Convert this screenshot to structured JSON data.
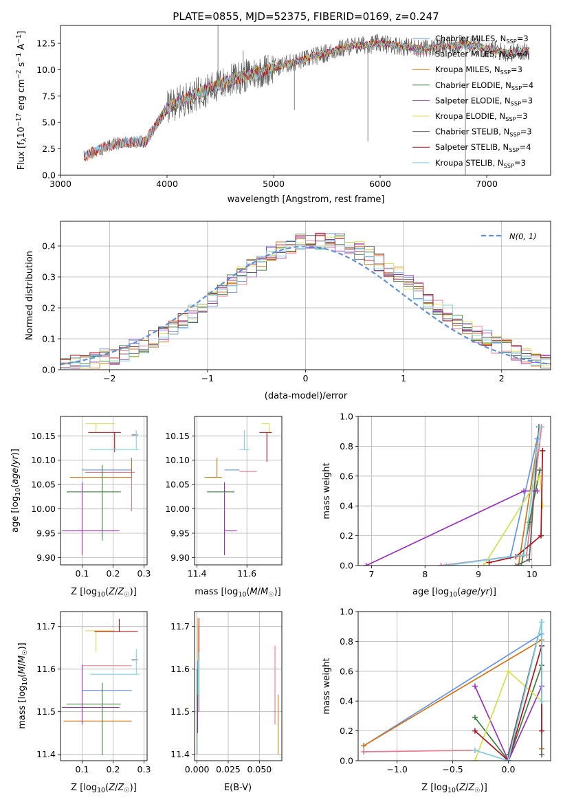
{
  "figure_title": "PLATE=0855, MJD=52375, FIBERID=0169, z=0.247",
  "colors": {
    "chabrier_miles": "#6495ed",
    "salpeter_miles": "#e8788a",
    "kroupa_miles": "#d8720e",
    "chabrier_elodie": "#3a7d3a",
    "salpeter_elodie": "#9b2fbf",
    "kroupa_elodie": "#d4e04a",
    "chabrier_stelib": "#606060",
    "salpeter_stelib": "#b0101a",
    "kroupa_stelib": "#7fd4e6"
  },
  "chart_data": [
    {
      "id": "spectrum",
      "type": "line",
      "title": "PLATE=0855, MJD=52375, FIBERID=0169, z=0.247",
      "xlabel": "wavelength [Angstrom, rest frame]",
      "ylabel": "Flux [f_λ 10^-17 erg cm^-2 s^-1 A^-1]",
      "xlim": [
        3000,
        7600
      ],
      "ylim": [
        0,
        14.2
      ],
      "x_ticks": [
        "3000",
        "4000",
        "5000",
        "6000",
        "7000"
      ],
      "y_ticks": [
        "0.0",
        "2.5",
        "5.0",
        "7.5",
        "10.0",
        "12.5"
      ],
      "grid": false,
      "legend_position": "top-right",
      "spectrum_range": [
        3220,
        7400
      ],
      "continuum_anchor_x": [
        3220,
        3500,
        3800,
        4000,
        4300,
        4600,
        5000,
        5300,
        5700,
        6000,
        6400,
        6800,
        7200,
        7400
      ],
      "continuum_anchor_y": [
        1.8,
        3.0,
        3.2,
        6.4,
        7.8,
        9.0,
        10.2,
        11.0,
        12.2,
        12.5,
        12.0,
        12.4,
        11.6,
        11.8
      ],
      "series": [
        {
          "name": "Chabrier MILES, N_SSP=3",
          "key": "chabrier_miles"
        },
        {
          "name": "Salpeter MILES, N_SSP=4",
          "key": "salpeter_miles"
        },
        {
          "name": "Kroupa MILES, N_SSP=3",
          "key": "kroupa_miles"
        },
        {
          "name": "Chabrier ELODIE, N_SSP=4",
          "key": "chabrier_elodie"
        },
        {
          "name": "Salpeter ELODIE, N_SSP=3",
          "key": "salpeter_elodie"
        },
        {
          "name": "Kroupa ELODIE, N_SSP=3",
          "key": "kroupa_elodie"
        },
        {
          "name": "Chabrier STELIB, N_SSP=3",
          "key": "chabrier_stelib"
        },
        {
          "name": "Salpeter STELIB, N_SSP=4",
          "key": "salpeter_stelib"
        },
        {
          "name": "Kroupa STELIB, N_SSP=3",
          "key": "kroupa_stelib"
        }
      ]
    },
    {
      "id": "residuals",
      "type": "histogram",
      "xlabel": "(data-model)/error",
      "ylabel": "Normed distribution",
      "xlim": [
        -2.5,
        2.5
      ],
      "ylim": [
        0,
        0.48
      ],
      "x_ticks": [
        "−2",
        "−1",
        "0",
        "1",
        "2"
      ],
      "y_ticks": [
        "0.0",
        "0.1",
        "0.2",
        "0.3",
        "0.4"
      ],
      "grid": true,
      "bin_width": 0.1,
      "gaussian_label": "N(0, 1)",
      "gaussian_mean": 0,
      "gaussian_sigma": 1,
      "legend_position": "top-right"
    },
    {
      "id": "age_vs_Z",
      "type": "errorbar",
      "xlabel": "Z [log10(Z/Z☉)]",
      "ylabel": "age [log10(age/yr)]",
      "xlim": [
        0.03,
        0.31
      ],
      "ylim": [
        9.885,
        10.19
      ],
      "x_ticks": [
        "0.1",
        "0.2",
        "0.3"
      ],
      "y_ticks": [
        "9.90",
        "9.95",
        "10.00",
        "10.05",
        "10.10",
        "10.15"
      ],
      "grid": true,
      "points": [
        {
          "key": "chabrier_miles",
          "x": 0.19,
          "xerr": [
            0.09,
            0.07
          ],
          "y": 10.08,
          "yerr": [
            0.0,
            0.0
          ]
        },
        {
          "key": "salpeter_miles",
          "x": 0.26,
          "xerr": [
            0.15,
            0.01
          ],
          "y": 10.075,
          "yerr": [
            0.08,
            0.0
          ]
        },
        {
          "key": "kroupa_miles",
          "x": 0.26,
          "xerr": [
            0.2,
            0.0
          ],
          "y": 10.065,
          "yerr": [
            0.0,
            0.04
          ]
        },
        {
          "key": "chabrier_elodie",
          "x": 0.165,
          "xerr": [
            0.115,
            0.06
          ],
          "y": 10.035,
          "yerr": [
            0.1,
            0.055
          ]
        },
        {
          "key": "salpeter_elodie",
          "x": 0.1,
          "xerr": [
            0.065,
            0.12
          ],
          "y": 9.955,
          "yerr": [
            0.05,
            0.1
          ]
        },
        {
          "key": "kroupa_elodie",
          "x": 0.145,
          "xerr": [
            0.035,
            0.06
          ],
          "y": 10.175,
          "yerr": [
            0.02,
            0.0
          ]
        },
        {
          "key": "chabrier_stelib",
          "x": 0.28,
          "xerr": [
            0.02,
            0.0
          ],
          "y": 10.152,
          "yerr": [
            0.0,
            0.0
          ]
        },
        {
          "key": "salpeter_stelib",
          "x": 0.205,
          "xerr": [
            0.085,
            0.02
          ],
          "y": 10.157,
          "yerr": [
            0.04,
            0.0
          ]
        },
        {
          "key": "kroupa_stelib",
          "x": 0.275,
          "xerr": [
            0.15,
            0.01
          ],
          "y": 10.122,
          "yerr": [
            0.0,
            0.04
          ]
        }
      ]
    },
    {
      "id": "age_vs_mass",
      "type": "errorbar",
      "xlabel": "mass [log10(M/M☉)]",
      "ylabel": "",
      "xlim": [
        11.39,
        11.74
      ],
      "ylim": [
        9.885,
        10.19
      ],
      "x_ticks": [
        "11.4",
        "11.6"
      ],
      "y_ticks": [
        "9.90",
        "9.95",
        "10.00",
        "10.05",
        "10.10",
        "10.15"
      ],
      "grid": true,
      "points": [
        {
          "key": "chabrier_miles",
          "x": 11.55,
          "xerr": [
            0.04,
            0.02
          ],
          "y": 10.08,
          "yerr": [
            0.0,
            0.0
          ]
        },
        {
          "key": "salpeter_miles",
          "x": 11.61,
          "xerr": [
            0.04,
            0.03
          ],
          "y": 10.077,
          "yerr": [
            0.0,
            0.0
          ]
        },
        {
          "key": "kroupa_miles",
          "x": 11.48,
          "xerr": [
            0.05,
            0.02
          ],
          "y": 10.065,
          "yerr": [
            0.0,
            0.04
          ]
        },
        {
          "key": "chabrier_elodie",
          "x": 11.51,
          "xerr": [
            0.07,
            0.04
          ],
          "y": 10.035,
          "yerr": [
            0.0,
            0.0
          ]
        },
        {
          "key": "salpeter_elodie",
          "x": 11.51,
          "xerr": [
            0.0,
            0.05
          ],
          "y": 9.955,
          "yerr": [
            0.05,
            0.1
          ]
        },
        {
          "key": "kroupa_elodie",
          "x": 11.69,
          "xerr": [
            0.03,
            0.0
          ],
          "y": 10.175,
          "yerr": [
            0.02,
            0.0
          ]
        },
        {
          "key": "chabrier_stelib",
          "x": 11.62,
          "xerr": [
            0.0,
            0.0
          ],
          "y": 10.152,
          "yerr": [
            0.0,
            0.0
          ]
        },
        {
          "key": "salpeter_stelib",
          "x": 11.68,
          "xerr": [
            0.03,
            0.02
          ],
          "y": 10.157,
          "yerr": [
            0.06,
            0.0
          ]
        },
        {
          "key": "kroupa_stelib",
          "x": 11.59,
          "xerr": [
            0.02,
            0.02
          ],
          "y": 10.122,
          "yerr": [
            0.0,
            0.04
          ]
        }
      ]
    },
    {
      "id": "weight_vs_age",
      "type": "line",
      "xlabel": "age [log10(age/yr)]",
      "ylabel": "mass weight",
      "xlim": [
        6.75,
        10.35
      ],
      "ylim": [
        0,
        1.0
      ],
      "x_ticks": [
        "7",
        "8",
        "9",
        "10"
      ],
      "y_ticks": [
        "0.0",
        "0.2",
        "0.4",
        "0.6",
        "0.8",
        "1.0"
      ],
      "grid": true,
      "series": [
        {
          "key": "chabrier_miles",
          "x": [
            8.3,
            9.6,
            10.1
          ],
          "y": [
            0.0,
            0.06,
            0.85
          ]
        },
        {
          "key": "salpeter_miles",
          "x": [
            8.3,
            9.9,
            10.18
          ],
          "y": [
            0.0,
            0.07,
            0.93
          ]
        },
        {
          "key": "kroupa_miles",
          "x": [
            9.75,
            10.1
          ],
          "y": [
            0.0,
            0.81
          ]
        },
        {
          "key": "chabrier_elodie",
          "x": [
            9.8,
            9.95,
            10.15
          ],
          "y": [
            0.0,
            0.29,
            0.64
          ]
        },
        {
          "key": "salpeter_elodie",
          "x": [
            6.9,
            9.85,
            10.1
          ],
          "y": [
            0.0,
            0.5,
            0.5
          ]
        },
        {
          "key": "kroupa_elodie",
          "x": [
            9.1,
            10.15,
            10.2
          ],
          "y": [
            0.0,
            0.6,
            0.4
          ]
        },
        {
          "key": "chabrier_stelib",
          "x": [
            9.7,
            9.95,
            10.13
          ],
          "y": [
            0.0,
            0.04,
            0.93
          ]
        },
        {
          "key": "salpeter_stelib",
          "x": [
            9.2,
            9.7,
            10.17,
            10.2
          ],
          "y": [
            0.02,
            0.06,
            0.2,
            0.77
          ]
        },
        {
          "key": "kroupa_stelib",
          "x": [
            8.4,
            9.85,
            10.15
          ],
          "y": [
            0.0,
            0.07,
            0.93
          ]
        }
      ]
    },
    {
      "id": "mass_vs_Z",
      "type": "errorbar",
      "xlabel": "Z [log10(Z/Z☉)]",
      "ylabel": "mass [log10(M/M☉)]",
      "xlim": [
        0.03,
        0.31
      ],
      "ylim": [
        11.385,
        11.735
      ],
      "x_ticks": [
        "0.1",
        "0.2",
        "0.3"
      ],
      "y_ticks": [
        "11.4",
        "11.5",
        "11.6",
        "11.7"
      ],
      "grid": true,
      "points": [
        {
          "key": "chabrier_miles",
          "x": 0.19,
          "xerr": [
            0.09,
            0.07
          ],
          "y": 11.55,
          "yerr": [
            0.0,
            0.0
          ]
        },
        {
          "key": "salpeter_miles",
          "x": 0.2,
          "xerr": [
            0.1,
            0.06
          ],
          "y": 11.608,
          "yerr": [
            0.0,
            0.0
          ]
        },
        {
          "key": "kroupa_miles",
          "x": 0.16,
          "xerr": [
            0.12,
            0.1
          ],
          "y": 11.478,
          "yerr": [
            0.0,
            0.0
          ]
        },
        {
          "key": "chabrier_elodie",
          "x": 0.165,
          "xerr": [
            0.115,
            0.06
          ],
          "y": 11.518,
          "yerr": [
            0.12,
            0.05
          ]
        },
        {
          "key": "salpeter_elodie",
          "x": 0.1,
          "xerr": [
            0.065,
            0.12
          ],
          "y": 11.51,
          "yerr": [
            0.04,
            0.1
          ]
        },
        {
          "key": "kroupa_elodie",
          "x": 0.145,
          "xerr": [
            0.035,
            0.06
          ],
          "y": 11.69,
          "yerr": [
            0.05,
            0.0
          ]
        },
        {
          "key": "chabrier_stelib",
          "x": 0.28,
          "xerr": [
            0.02,
            0.0
          ],
          "y": 11.622,
          "yerr": [
            0.0,
            0.0
          ]
        },
        {
          "key": "salpeter_stelib",
          "x": 0.22,
          "xerr": [
            0.08,
            0.06
          ],
          "y": 11.688,
          "yerr": [
            0.0,
            0.03
          ]
        },
        {
          "key": "kroupa_stelib",
          "x": 0.275,
          "xerr": [
            0.15,
            0.01
          ],
          "y": 11.588,
          "yerr": [
            0.0,
            0.06
          ]
        }
      ]
    },
    {
      "id": "mass_vs_ebv",
      "type": "errorbar",
      "xlabel": "E(B-V)",
      "ylabel": "",
      "xlim": [
        -0.002,
        0.068
      ],
      "ylim": [
        11.385,
        11.735
      ],
      "x_ticks": [
        "0.000",
        "0.025",
        "0.050"
      ],
      "y_ticks": [
        "11.4",
        "11.5",
        "11.6",
        "11.7"
      ],
      "grid": true,
      "points": [
        {
          "key": "chabrier_miles",
          "x": 0.0005,
          "xerr": [
            0.0,
            0.0
          ],
          "y": 11.55,
          "yerr": [
            0.1,
            0.1
          ]
        },
        {
          "key": "salpeter_miles",
          "x": 0.0625,
          "xerr": [
            0.0,
            0.0
          ],
          "y": 11.57,
          "yerr": [
            0.1,
            0.085
          ]
        },
        {
          "key": "kroupa_miles",
          "x": 0.065,
          "xerr": [
            0.0,
            0.0
          ],
          "y": 11.48,
          "yerr": [
            0.08,
            0.06
          ]
        },
        {
          "key": "chabrier_elodie",
          "x": 0.0,
          "xerr": [
            0.0,
            0.0
          ],
          "y": 11.5,
          "yerr": [
            0.1,
            0.1
          ]
        },
        {
          "key": "salpeter_elodie",
          "x": 0.0005,
          "xerr": [
            0.0,
            0.0
          ],
          "y": 11.49,
          "yerr": [
            0.04,
            0.05
          ]
        },
        {
          "key": "kroupa_elodie",
          "x": 0.0005,
          "xerr": [
            0.0,
            0.0
          ],
          "y": 11.67,
          "yerr": [
            0.05,
            0.05
          ]
        },
        {
          "key": "chabrier_stelib",
          "x": 0.0015,
          "xerr": [
            0.0,
            0.0
          ],
          "y": 11.6,
          "yerr": [
            0.1,
            0.1
          ]
        },
        {
          "key": "salpeter_stelib",
          "x": 0.0015,
          "xerr": [
            0.0,
            0.0
          ],
          "y": 11.67,
          "yerr": [
            0.05,
            0.05
          ]
        },
        {
          "key": "kroupa_stelib",
          "x": 0.0012,
          "xerr": [
            0.0,
            0.0
          ],
          "y": 11.59,
          "yerr": [
            0.05,
            0.05
          ]
        }
      ]
    },
    {
      "id": "weight_vs_Z",
      "type": "line",
      "xlabel": "Z [log10(Z/Z☉)]",
      "ylabel": "mass weight",
      "xlim": [
        -1.35,
        0.38
      ],
      "ylim": [
        0,
        1.0
      ],
      "x_ticks": [
        "−1.0",
        "−0.5",
        "0.0"
      ],
      "y_ticks": [
        "0.0",
        "0.2",
        "0.4",
        "0.6",
        "0.8",
        "1.0"
      ],
      "grid": true,
      "series": [
        {
          "key": "chabrier_miles",
          "x": [
            -1.3,
            0.3
          ],
          "y": [
            0.1,
            0.85
          ]
        },
        {
          "key": "salpeter_miles",
          "x": [
            -1.3,
            -0.3,
            0.0,
            0.3
          ],
          "y": [
            0.06,
            0.07,
            0.0,
            0.93
          ]
        },
        {
          "key": "kroupa_miles",
          "x": [
            -1.3,
            0.3,
            0.3
          ],
          "y": [
            0.1,
            0.81,
            0.08
          ]
        },
        {
          "key": "chabrier_elodie",
          "x": [
            -0.3,
            0.0,
            0.3
          ],
          "y": [
            0.29,
            0.0,
            0.64
          ]
        },
        {
          "key": "salpeter_elodie",
          "x": [
            -0.3,
            0.0,
            0.3
          ],
          "y": [
            0.5,
            0.0,
            0.5
          ]
        },
        {
          "key": "kroupa_elodie",
          "x": [
            -0.3,
            0.0,
            0.3
          ],
          "y": [
            0.0,
            0.6,
            0.4
          ]
        },
        {
          "key": "chabrier_stelib",
          "x": [
            0.0,
            0.3,
            0.3
          ],
          "y": [
            0.04,
            0.93,
            0.04
          ]
        },
        {
          "key": "salpeter_stelib",
          "x": [
            -0.3,
            0.0,
            0.3,
            0.3
          ],
          "y": [
            0.2,
            0.0,
            0.77,
            0.2
          ]
        },
        {
          "key": "kroupa_stelib",
          "x": [
            -0.3,
            0.0,
            0.3,
            0.3
          ],
          "y": [
            0.07,
            0.0,
            0.93,
            0.4
          ]
        }
      ]
    }
  ]
}
